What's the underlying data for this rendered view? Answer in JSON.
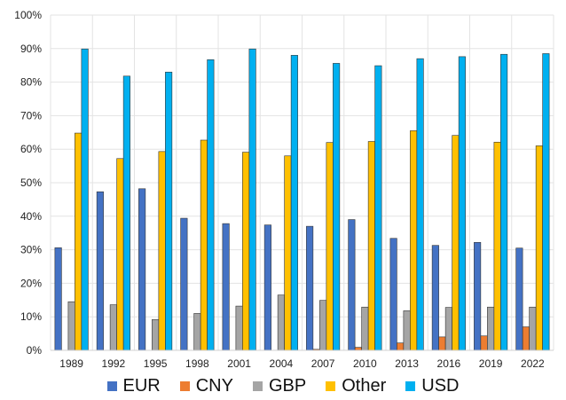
{
  "chart_data": {
    "type": "bar",
    "categories": [
      "1989",
      "1992",
      "1995",
      "1998",
      "2001",
      "2004",
      "2007",
      "2010",
      "2013",
      "2016",
      "2019",
      "2022"
    ],
    "ylim": [
      0,
      100
    ],
    "yticks": [
      "0%",
      "10%",
      "20%",
      "30%",
      "40%",
      "50%",
      "60%",
      "70%",
      "80%",
      "90%",
      "100%"
    ],
    "grid": true,
    "legend_position": "bottom",
    "series": [
      {
        "name": "EUR",
        "color": "#4472C4",
        "values": [
          30.6,
          47.3,
          48.2,
          39.4,
          37.8,
          37.4,
          37.0,
          39.0,
          33.4,
          31.3,
          32.2,
          30.5
        ]
      },
      {
        "name": "CNY",
        "color": "#ED7D31",
        "values": [
          0,
          0,
          0,
          0,
          0,
          0,
          0.3,
          0.9,
          2.2,
          4.0,
          4.3,
          7.0
        ]
      },
      {
        "name": "GBP",
        "color": "#A5A5A5",
        "values": [
          14.5,
          13.6,
          9.2,
          11.0,
          13.2,
          16.5,
          14.9,
          12.9,
          11.8,
          12.8,
          12.9,
          12.9
        ]
      },
      {
        "name": "Other",
        "color": "#FFC000",
        "values": [
          64.8,
          57.2,
          59.3,
          62.7,
          59.1,
          58.0,
          62.0,
          62.3,
          65.5,
          64.1,
          62.1,
          61.0
        ]
      },
      {
        "name": "USD",
        "color": "#00B0F0",
        "values": [
          89.9,
          81.8,
          83.0,
          86.7,
          89.9,
          88.0,
          85.6,
          84.9,
          87.0,
          87.6,
          88.3,
          88.5
        ]
      }
    ]
  }
}
